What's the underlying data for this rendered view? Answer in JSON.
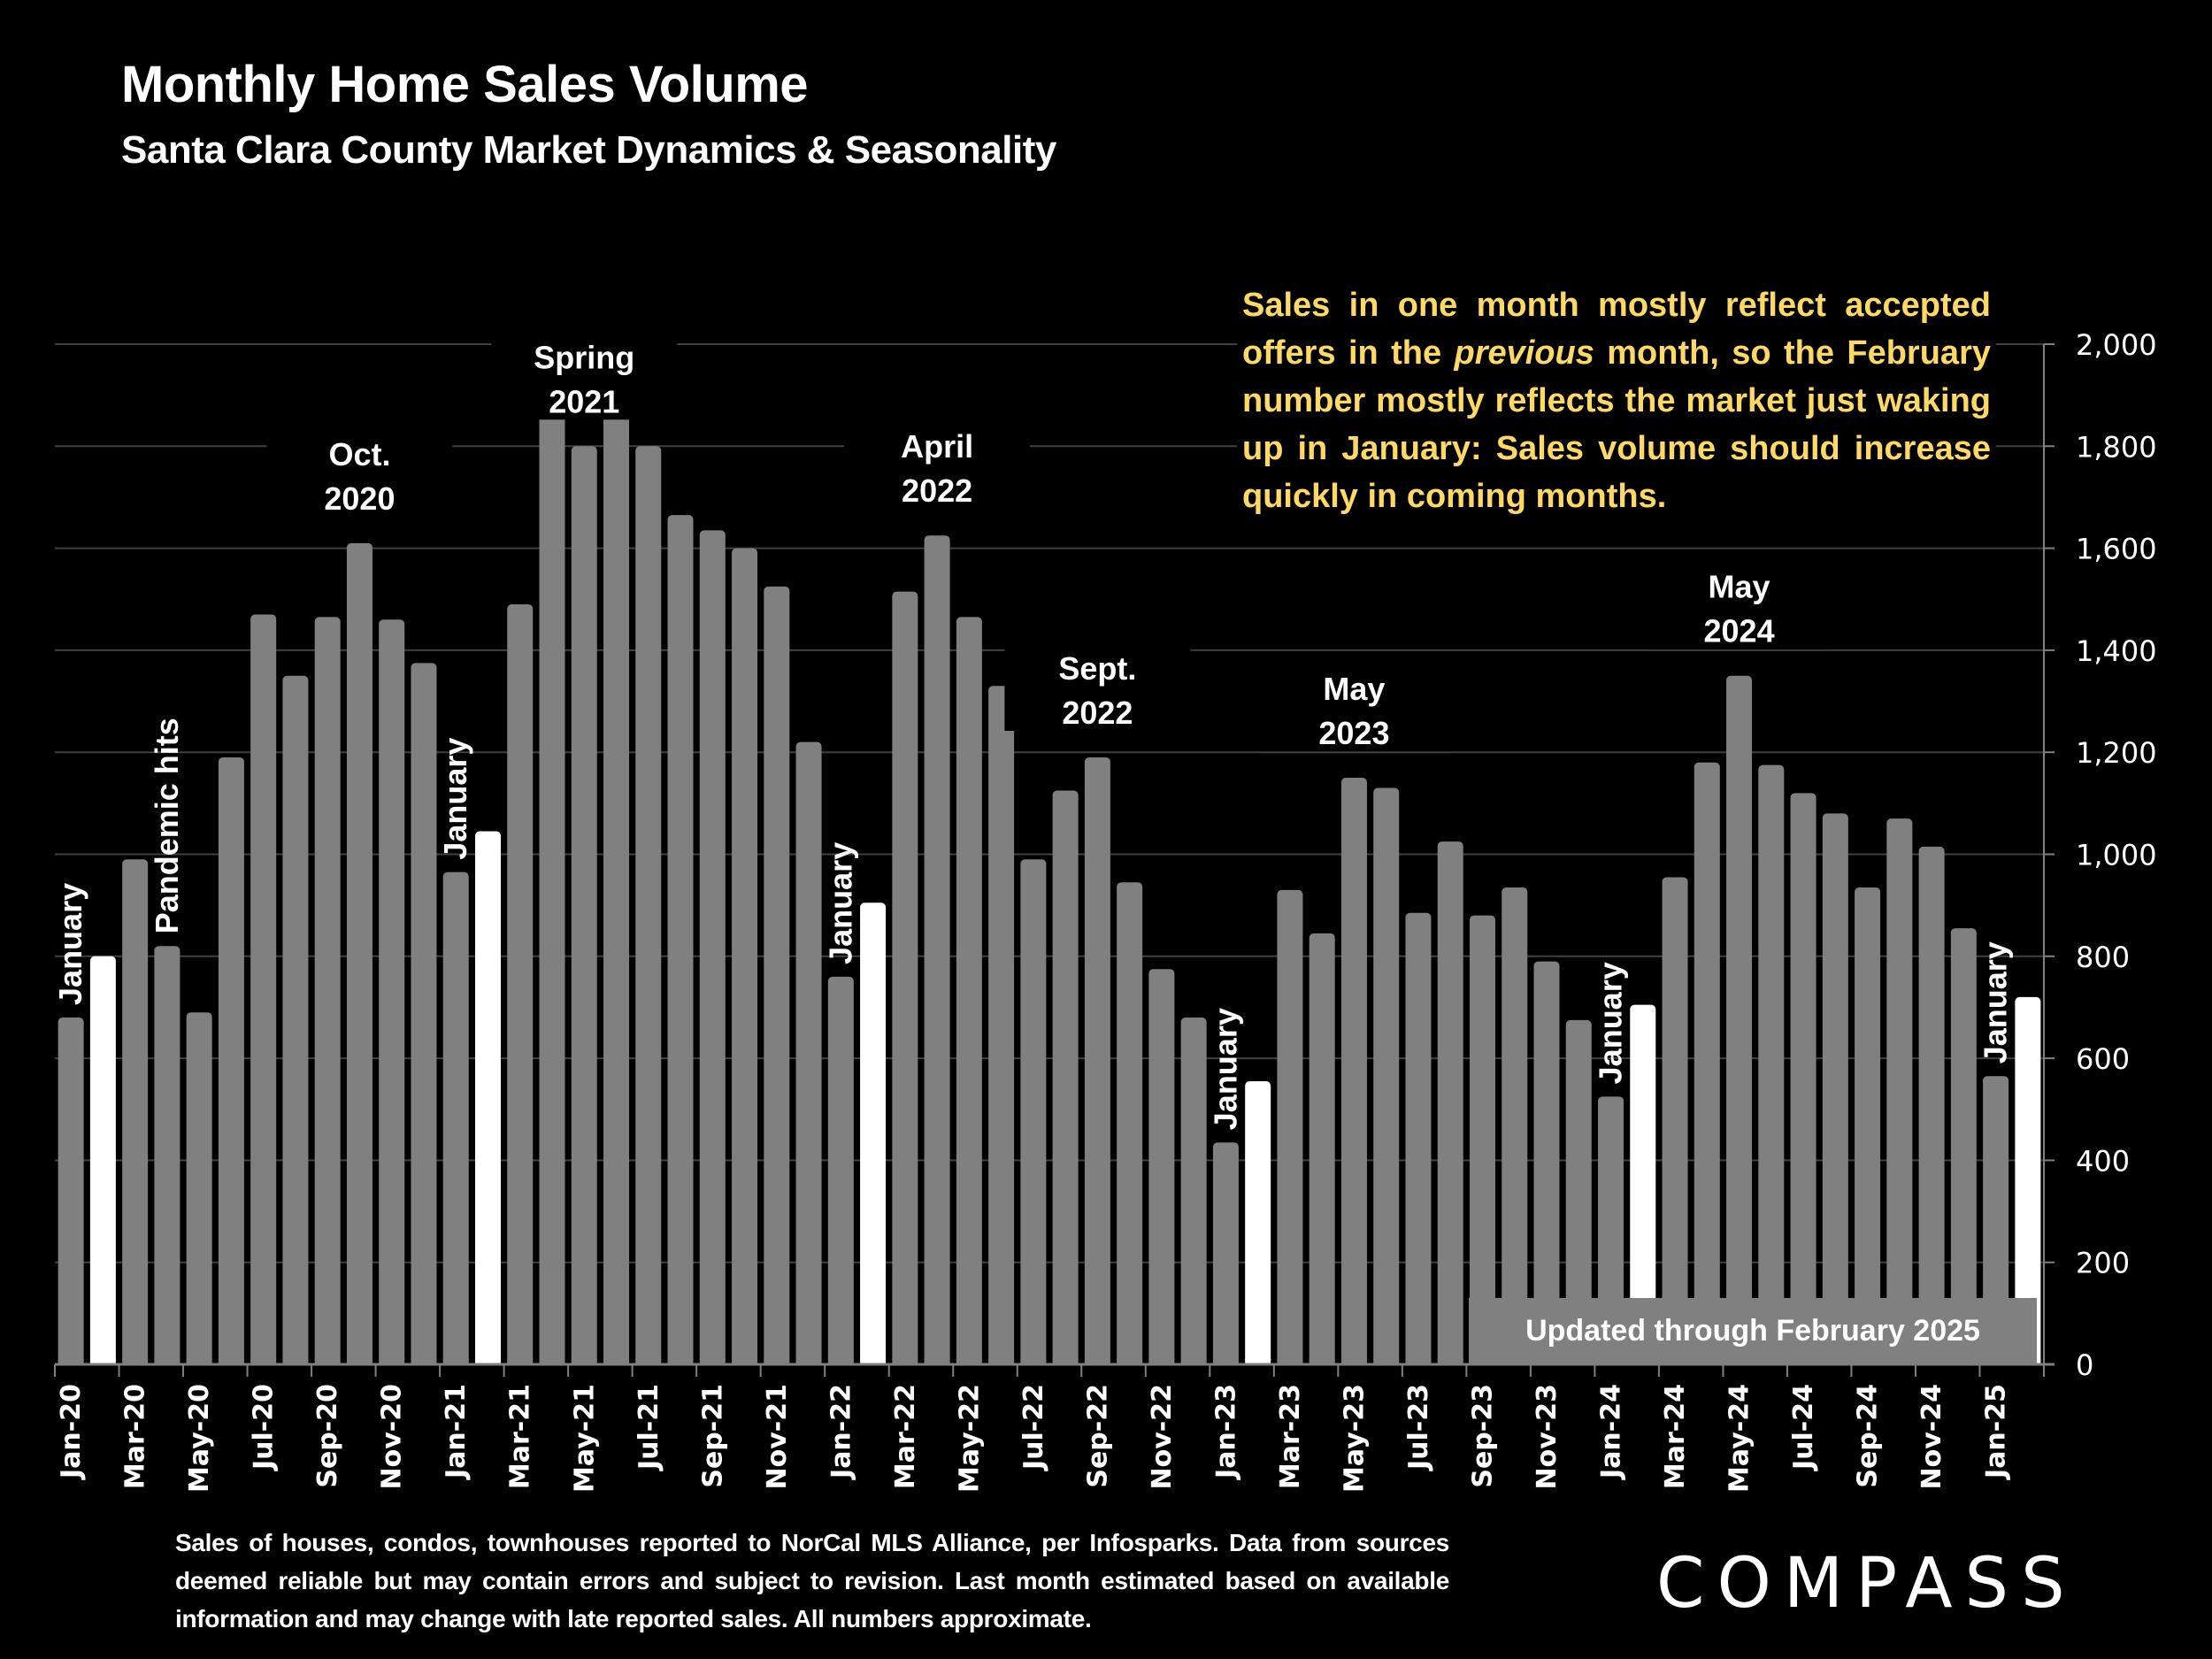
{
  "header": {
    "title": "Monthly Home Sales Volume",
    "subtitle": "Santa Clara County Market Dynamics & Seasonality"
  },
  "callout": {
    "part1": "Sales in one month mostly reflect accepted offers in the ",
    "emphasis": "previous",
    "part2": " month, so the February number mostly reflects the market just waking up in January:  Sales volume should increase quickly in coming months."
  },
  "updated_badge": "Updated through February 2025",
  "footer": {
    "note": "Sales of houses, condos, townhouses reported to NorCal MLS Alliance, per Infosparks. Data from sources deemed reliable but may contain errors and subject to revision. Last month estimated based on available information and may change with late reported sales. All numbers approximate."
  },
  "logo": "COMPASS",
  "colors": {
    "bar_default": "#808080",
    "bar_february": "#FFFFFF",
    "callout_text": "#FFD966",
    "gridline": "#404040",
    "background": "#000000"
  },
  "chart_data": {
    "type": "bar",
    "title": "Monthly Home Sales Volume",
    "subtitle": "Santa Clara County Market Dynamics & Seasonality",
    "xlabel": "",
    "ylabel": "",
    "ylim": [
      0,
      2000
    ],
    "yticks": [
      0,
      200,
      400,
      600,
      800,
      1000,
      1200,
      1400,
      1600,
      1800,
      2000
    ],
    "ytick_labels": [
      "0",
      "200",
      "400",
      "600",
      "800",
      "1,000",
      "1,200",
      "1,400",
      "1,600",
      "1,800",
      "2,000"
    ],
    "y_axis_position": "right",
    "grid": true,
    "categories": [
      "Jan-20",
      "Feb-20",
      "Mar-20",
      "Apr-20",
      "May-20",
      "Jun-20",
      "Jul-20",
      "Aug-20",
      "Sep-20",
      "Oct-20",
      "Nov-20",
      "Dec-20",
      "Jan-21",
      "Feb-21",
      "Mar-21",
      "Apr-21",
      "May-21",
      "Jun-21",
      "Jul-21",
      "Aug-21",
      "Sep-21",
      "Oct-21",
      "Nov-21",
      "Dec-21",
      "Jan-22",
      "Feb-22",
      "Mar-22",
      "Apr-22",
      "May-22",
      "Jun-22",
      "Jul-22",
      "Aug-22",
      "Sep-22",
      "Oct-22",
      "Nov-22",
      "Dec-22",
      "Jan-23",
      "Feb-23",
      "Mar-23",
      "Apr-23",
      "May-23",
      "Jun-23",
      "Jul-23",
      "Aug-23",
      "Sep-23",
      "Oct-23",
      "Nov-23",
      "Dec-23",
      "Jan-24",
      "Feb-24",
      "Mar-24",
      "Apr-24",
      "May-24",
      "Jun-24",
      "Jul-24",
      "Aug-24",
      "Sep-24",
      "Oct-24",
      "Nov-24",
      "Dec-24",
      "Jan-25",
      "Feb-25"
    ],
    "values": [
      680,
      800,
      990,
      820,
      690,
      1190,
      1470,
      1350,
      1465,
      1610,
      1460,
      1375,
      965,
      1045,
      1490,
      1950,
      1800,
      1980,
      1800,
      1665,
      1635,
      1600,
      1525,
      1220,
      760,
      905,
      1515,
      1625,
      1465,
      1330,
      990,
      1125,
      1190,
      945,
      775,
      680,
      435,
      555,
      930,
      845,
      1150,
      1130,
      885,
      1025,
      880,
      935,
      790,
      675,
      525,
      705,
      955,
      1180,
      1350,
      1175,
      1120,
      1080,
      935,
      1070,
      1015,
      855,
      565,
      720
    ],
    "highlight_indices": [
      1,
      13,
      25,
      37,
      49,
      61
    ],
    "highlight_label": "February",
    "shown_xtick_labels": [
      "Jan-20",
      "Mar-20",
      "May-20",
      "Jul-20",
      "Sep-20",
      "Nov-20",
      "Jan-21",
      "Mar-21",
      "May-21",
      "Jul-21",
      "Sep-21",
      "Nov-21",
      "Jan-22",
      "Mar-22",
      "May-22",
      "Jul-22",
      "Sep-22",
      "Nov-22",
      "Jan-23",
      "Mar-23",
      "May-23",
      "Jul-23",
      "Sep-23",
      "Nov-23",
      "Jan-24",
      "Mar-24",
      "May-24",
      "Jul-24",
      "Sep-24",
      "Nov-24",
      "Jan-25"
    ],
    "annotations": [
      {
        "text": "January",
        "at": "Jan-20",
        "style": "rotated"
      },
      {
        "text": "Pandemic hits",
        "at": "Apr-20",
        "style": "rotated"
      },
      {
        "text": "Oct. 2020",
        "at": "Oct-20",
        "style": "above"
      },
      {
        "text": "January",
        "at": "Jan-21",
        "style": "rotated"
      },
      {
        "text": "Spring 2021",
        "at": "May-21",
        "style": "above"
      },
      {
        "text": "January",
        "at": "Jan-22",
        "style": "rotated"
      },
      {
        "text": "April 2022",
        "at": "Apr-22",
        "style": "above"
      },
      {
        "text": "Sept. 2022",
        "at": "Sep-22",
        "style": "above"
      },
      {
        "text": "January",
        "at": "Jan-23",
        "style": "rotated"
      },
      {
        "text": "May 2023",
        "at": "May-23",
        "style": "above"
      },
      {
        "text": "January",
        "at": "Jan-24",
        "style": "rotated"
      },
      {
        "text": "May 2024",
        "at": "May-24",
        "style": "above"
      },
      {
        "text": "January",
        "at": "Jan-25",
        "style": "rotated"
      }
    ]
  }
}
